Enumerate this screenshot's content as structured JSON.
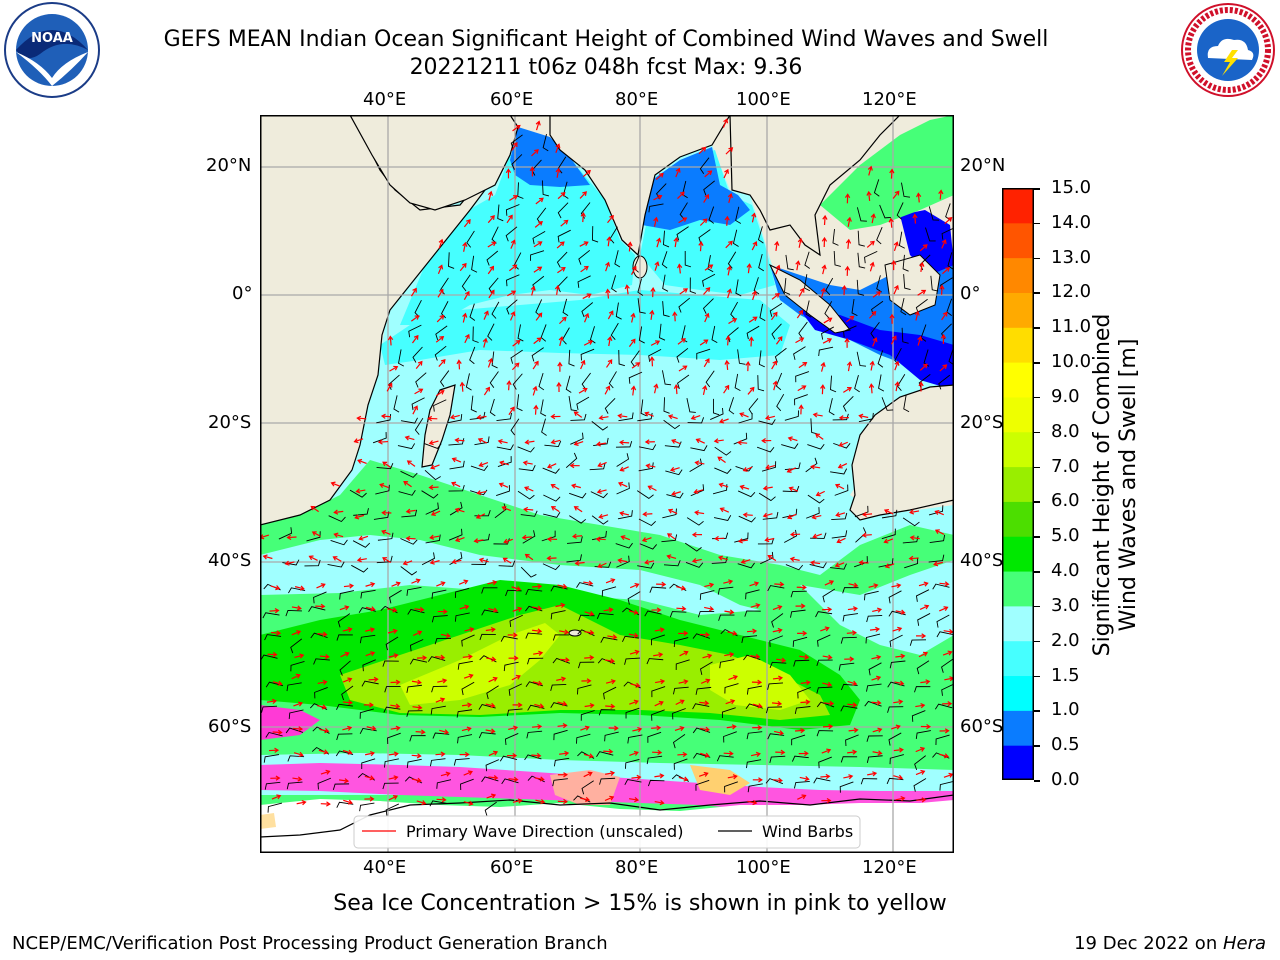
{
  "header": {
    "title_line1": "GEFS MEAN Indian Ocean Significant Height of Combined Wind Waves and Swell",
    "title_line2": "20221211 t06z 048h fcst   Max: 9.36",
    "left_logo_text": "NOAA",
    "left_logo_ring_text": "NATIONAL OCEANIC AND ATMOSPHERIC ADMINISTRATION · U.S. DEPARTMENT OF COMMERCE",
    "right_logo_ring_text": "NATIONAL WEATHER SERVICE"
  },
  "map": {
    "lon_labels": [
      "40°E",
      "60°E",
      "80°E",
      "100°E",
      "120°E"
    ],
    "lat_labels": [
      "20°N",
      "0°",
      "20°S",
      "40°S",
      "60°S"
    ],
    "legend": {
      "wave_direction": "Primary Wave Direction (unscaled)",
      "wind_barbs": "Wind Barbs"
    },
    "colors": {
      "land": "#efecdc",
      "wave_arrow": "#ff0000",
      "wind_barb": "#000000"
    }
  },
  "colorbar": {
    "label_line1": "Significant Height of Combined",
    "label_line2": "Wind Waves and Swell [m]",
    "ticks": [
      "0.0",
      "0.5",
      "1.0",
      "1.5",
      "2.0",
      "3.0",
      "4.0",
      "5.0",
      "6.0",
      "7.0",
      "8.0",
      "9.0",
      "10.0",
      "11.0",
      "12.0",
      "13.0",
      "14.0",
      "15.0"
    ],
    "colors": [
      "#0000ff",
      "#0a7cff",
      "#00ffff",
      "#46ffff",
      "#a0ffff",
      "#46ff78",
      "#00e800",
      "#4cde00",
      "#99ee00",
      "#ccff00",
      "#eeff00",
      "#ffff00",
      "#ffdd00",
      "#ffaa00",
      "#ff8800",
      "#ff5500",
      "#ff2200"
    ]
  },
  "bottom_note": "Sea Ice Concentration > 15% is shown in pink to yellow",
  "footer": {
    "left": "NCEP/EMC/Verification Post Processing Product Generation Branch",
    "right_prefix": "19 Dec 2022 on ",
    "right_host": "Hera"
  }
}
